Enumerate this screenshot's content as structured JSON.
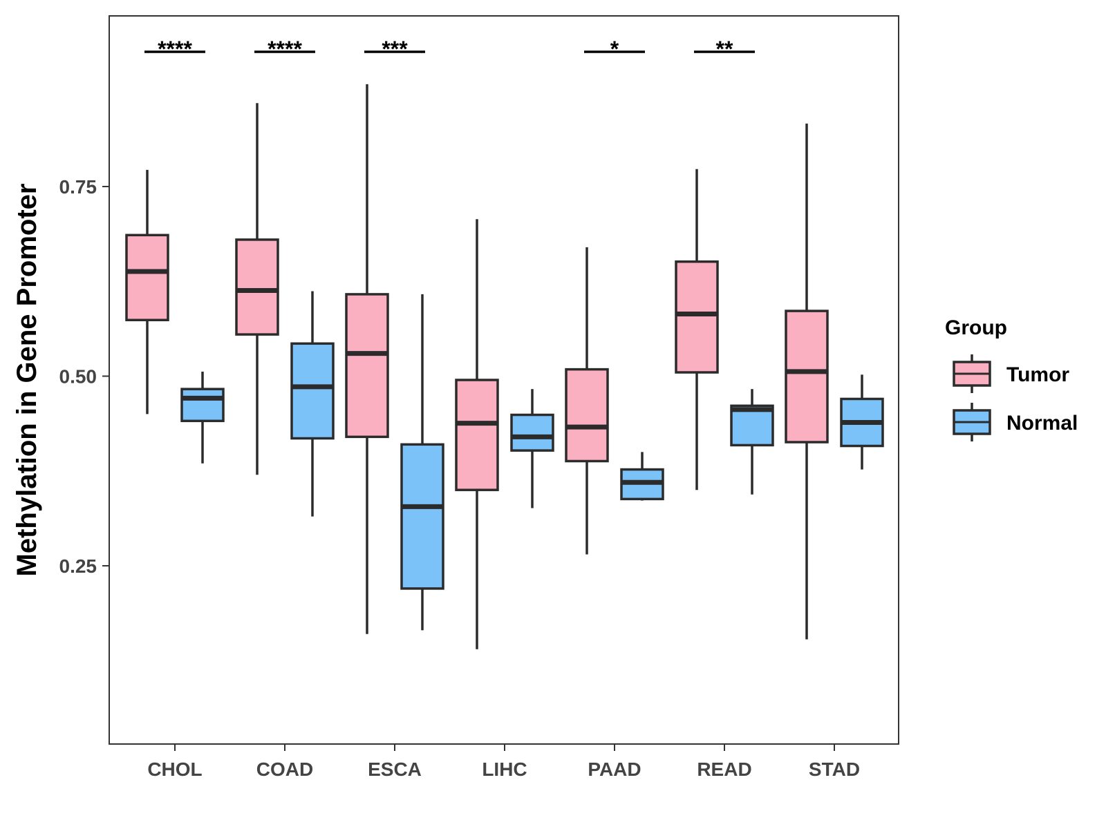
{
  "chart_data": {
    "type": "boxplot",
    "title": "",
    "xlabel": "",
    "ylabel": "Methylation in Gene Promoter",
    "ylim": [
      0.015,
      0.975
    ],
    "yticks": [
      0.25,
      0.5,
      0.75
    ],
    "ytick_labels": [
      "0.25",
      "0.50",
      "0.75"
    ],
    "grid": false,
    "categories": [
      "CHOL",
      "COAD",
      "ESCA",
      "LIHC",
      "PAAD",
      "READ",
      "STAD"
    ],
    "series": [
      {
        "name": "Tumor",
        "color": "#fbb0c2",
        "boxes": [
          {
            "min": 0.45,
            "q1": 0.574,
            "median": 0.638,
            "q3": 0.686,
            "max": 0.772
          },
          {
            "min": 0.37,
            "q1": 0.555,
            "median": 0.613,
            "q3": 0.68,
            "max": 0.86
          },
          {
            "min": 0.16,
            "q1": 0.42,
            "median": 0.53,
            "q3": 0.608,
            "max": 0.885
          },
          {
            "min": 0.14,
            "q1": 0.35,
            "median": 0.438,
            "q3": 0.495,
            "max": 0.707
          },
          {
            "min": 0.265,
            "q1": 0.388,
            "median": 0.433,
            "q3": 0.509,
            "max": 0.67
          },
          {
            "min": 0.35,
            "q1": 0.505,
            "median": 0.582,
            "q3": 0.651,
            "max": 0.773
          },
          {
            "min": 0.153,
            "q1": 0.413,
            "median": 0.506,
            "q3": 0.586,
            "max": 0.833
          }
        ]
      },
      {
        "name": "Normal",
        "color": "#7ac2f8",
        "boxes": [
          {
            "min": 0.385,
            "q1": 0.441,
            "median": 0.471,
            "q3": 0.483,
            "max": 0.506
          },
          {
            "min": 0.315,
            "q1": 0.418,
            "median": 0.486,
            "q3": 0.543,
            "max": 0.612
          },
          {
            "min": 0.165,
            "q1": 0.22,
            "median": 0.328,
            "q3": 0.41,
            "max": 0.608
          },
          {
            "min": 0.326,
            "q1": 0.402,
            "median": 0.42,
            "q3": 0.449,
            "max": 0.483
          },
          {
            "min": 0.336,
            "q1": 0.338,
            "median": 0.36,
            "q3": 0.377,
            "max": 0.4
          },
          {
            "min": 0.344,
            "q1": 0.409,
            "median": 0.456,
            "q3": 0.461,
            "max": 0.483
          },
          {
            "min": 0.377,
            "q1": 0.408,
            "median": 0.439,
            "q3": 0.47,
            "max": 0.502
          }
        ]
      }
    ],
    "significance": [
      {
        "category": "CHOL",
        "label": "****"
      },
      {
        "category": "COAD",
        "label": "****"
      },
      {
        "category": "ESCA",
        "label": "***"
      },
      {
        "category": "PAAD",
        "label": "*"
      },
      {
        "category": "READ",
        "label": "**"
      }
    ],
    "legend": {
      "title": "Group",
      "position": "right",
      "entries": [
        "Tumor",
        "Normal"
      ]
    }
  }
}
